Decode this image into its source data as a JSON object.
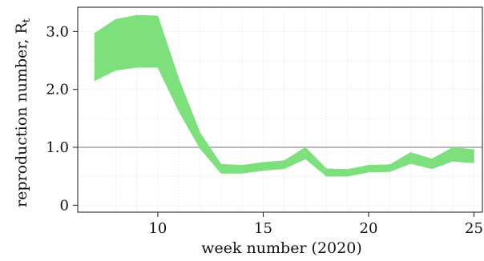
{
  "chart_data": {
    "type": "area",
    "xlabel": "week number (2020)",
    "ylabel_main": "reproduction number, R",
    "ylabel_sub": "t",
    "xlim": [
      6.2,
      25.4
    ],
    "ylim": [
      -0.12,
      3.42
    ],
    "xticks": [
      10,
      15,
      20,
      25
    ],
    "yticks": [
      0,
      1.0,
      2.0,
      3.0
    ],
    "ytick_labels": [
      "0",
      "1.0",
      "2.0",
      "3.0"
    ],
    "grid": true,
    "reference_line": {
      "y": 1.0,
      "color": "#b8b8b8"
    },
    "series": [
      {
        "color": "#7de07d",
        "x": [
          7,
          8,
          9,
          10,
          11,
          12,
          13,
          14,
          15,
          16,
          17,
          18,
          19,
          20,
          21,
          22,
          23,
          24,
          25
        ],
        "lower": [
          2.15,
          2.33,
          2.38,
          2.38,
          1.62,
          0.98,
          0.55,
          0.55,
          0.6,
          0.63,
          0.8,
          0.5,
          0.5,
          0.57,
          0.58,
          0.72,
          0.63,
          0.76,
          0.73
        ],
        "upper": [
          2.97,
          3.21,
          3.28,
          3.27,
          2.18,
          1.25,
          0.71,
          0.69,
          0.74,
          0.77,
          1.0,
          0.63,
          0.62,
          0.69,
          0.7,
          0.91,
          0.8,
          1.0,
          0.96
        ]
      }
    ]
  }
}
